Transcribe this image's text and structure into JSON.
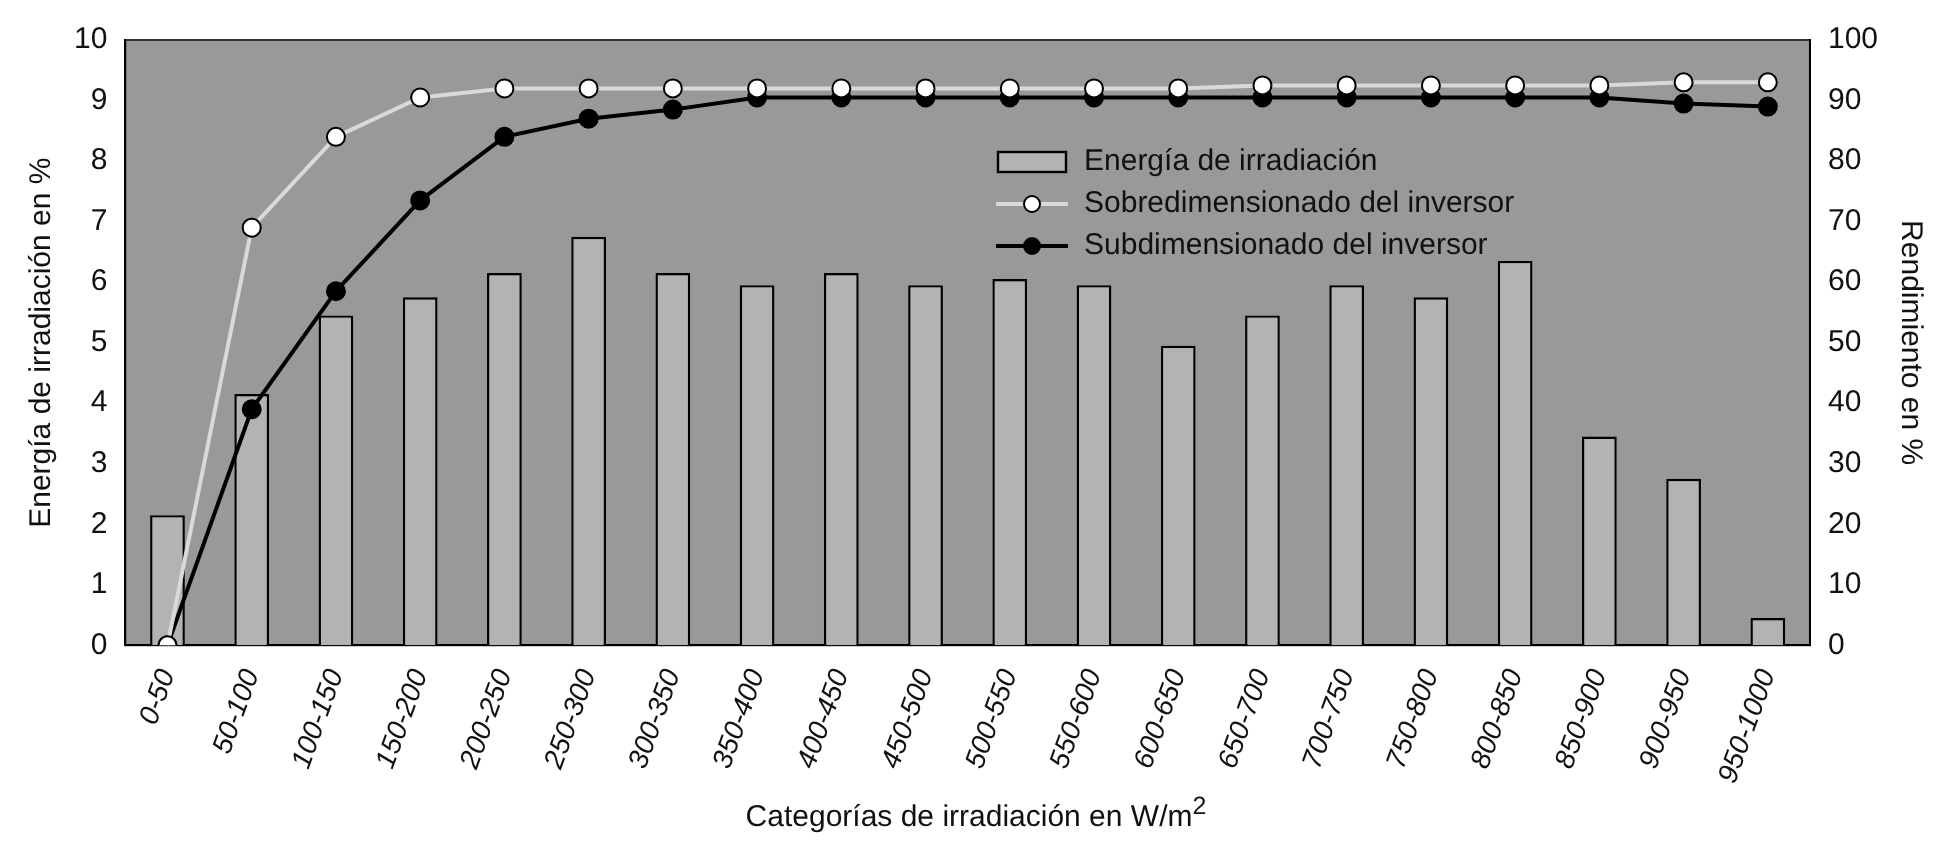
{
  "chart_data": {
    "type": "bar",
    "xlabel": "Categorías de irradiación en W/m$^{2}$",
    "ylabel": "Energía de irradiación en %",
    "y2label": "Rendimiento en %",
    "categories": [
      "0-50",
      "50-100",
      "100-150",
      "150-200",
      "200-250",
      "250-300",
      "300-350",
      "350-400",
      "400-450",
      "450-500",
      "500-550",
      "550-600",
      "600-650",
      "650-700",
      "700-750",
      "750-800",
      "800-850",
      "850-900",
      "900-950",
      "950-1000"
    ],
    "series": [
      {
        "name": "Energía de irradiación",
        "color": "#b3b3b3",
        "values": [
          2.15,
          4.15,
          5.45,
          5.75,
          6.15,
          6.75,
          6.15,
          5.95,
          6.15,
          5.95,
          6.05,
          5.95,
          4.95,
          5.45,
          5.95,
          5.75,
          6.35,
          3.45,
          2.75,
          0.45
        ]
      },
      {
        "name": "Sobredimensionado del inversor",
        "type": "line",
        "axis": "y2",
        "color": "#d9d9d9",
        "marker": "circle",
        "values": [
          0,
          69,
          84,
          90.5,
          92,
          92,
          92,
          92,
          92,
          92,
          92,
          92,
          92,
          92.5,
          92.5,
          92.5,
          92.5,
          92.5,
          93,
          93
        ]
      },
      {
        "name": "Subdimensionado del inversor",
        "type": "line",
        "axis": "y2",
        "color": "#000000",
        "marker": "circle",
        "values": [
          0,
          39,
          58.5,
          73.5,
          84,
          87,
          88.5,
          90.5,
          90.5,
          90.5,
          90.5,
          90.5,
          90.5,
          90.5,
          90.5,
          90.5,
          90.5,
          90.5,
          89.5,
          89
        ]
      }
    ],
    "ylim": [
      0,
      10
    ],
    "yticks": [
      0,
      1,
      2,
      3,
      4,
      5,
      6,
      7,
      8,
      9,
      10
    ],
    "y2lim": [
      0,
      100
    ],
    "y2ticks": [
      0,
      10,
      20,
      30,
      40,
      50,
      60,
      70,
      80,
      90,
      100
    ],
    "legend": "top right",
    "grid": false
  }
}
